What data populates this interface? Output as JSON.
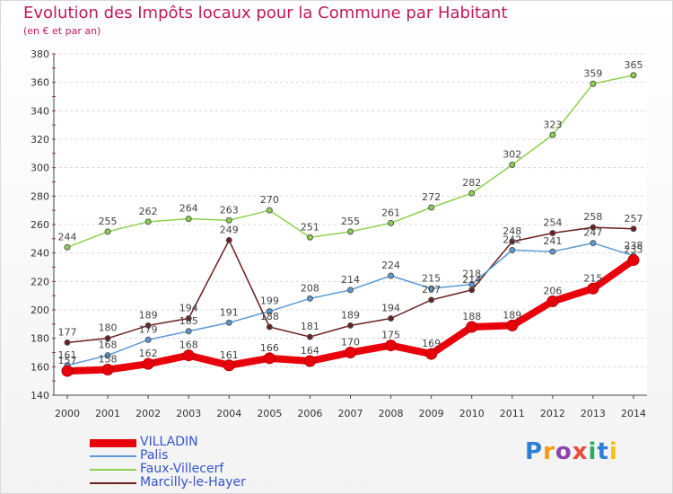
{
  "title": "Evolution des Impôts locaux pour la Commune par Habitant",
  "subtitle": "(en € et par an)",
  "logo": {
    "text": "Proxiti",
    "colors": [
      "#2e7fd6",
      "#f39c12",
      "#8e44ad",
      "#e74c3c",
      "#27ae60",
      "#2e7fd6",
      "#f1c40f"
    ]
  },
  "chart_data": {
    "type": "line",
    "title": "Evolution des Impôts locaux pour la Commune par Habitant",
    "subtitle": "(en € et par an)",
    "x": [
      "2000",
      "2001",
      "2002",
      "2003",
      "2004",
      "2005",
      "2006",
      "2007",
      "2008",
      "2009",
      "2010",
      "2011",
      "2012",
      "2013",
      "2014"
    ],
    "ylim": [
      140,
      380
    ],
    "yticks": [
      140,
      160,
      180,
      200,
      220,
      240,
      260,
      280,
      300,
      320,
      340,
      360,
      380
    ],
    "grid": "horizontal",
    "legend_position": "bottom-left",
    "series": [
      {
        "name": "VILLADIN",
        "color": "#e8000b",
        "values": [
          157,
          158,
          162,
          168,
          161,
          166,
          164,
          170,
          175,
          169,
          188,
          189,
          206,
          215,
          235
        ]
      },
      {
        "name": "Palis",
        "color": "#5b9bd5",
        "values": [
          161,
          168,
          179,
          185,
          191,
          199,
          208,
          214,
          224,
          215,
          218,
          242,
          241,
          247,
          238
        ]
      },
      {
        "name": "Faux-Villecerf",
        "color": "#8ed14f",
        "values": [
          244,
          255,
          262,
          264,
          263,
          270,
          251,
          255,
          261,
          272,
          282,
          302,
          323,
          359,
          365
        ]
      },
      {
        "name": "Marcilly-le-Hayer",
        "color": "#6b1f1f",
        "values": [
          177,
          180,
          189,
          194,
          249,
          188,
          181,
          189,
          194,
          207,
          214,
          248,
          254,
          258,
          257
        ]
      }
    ]
  }
}
